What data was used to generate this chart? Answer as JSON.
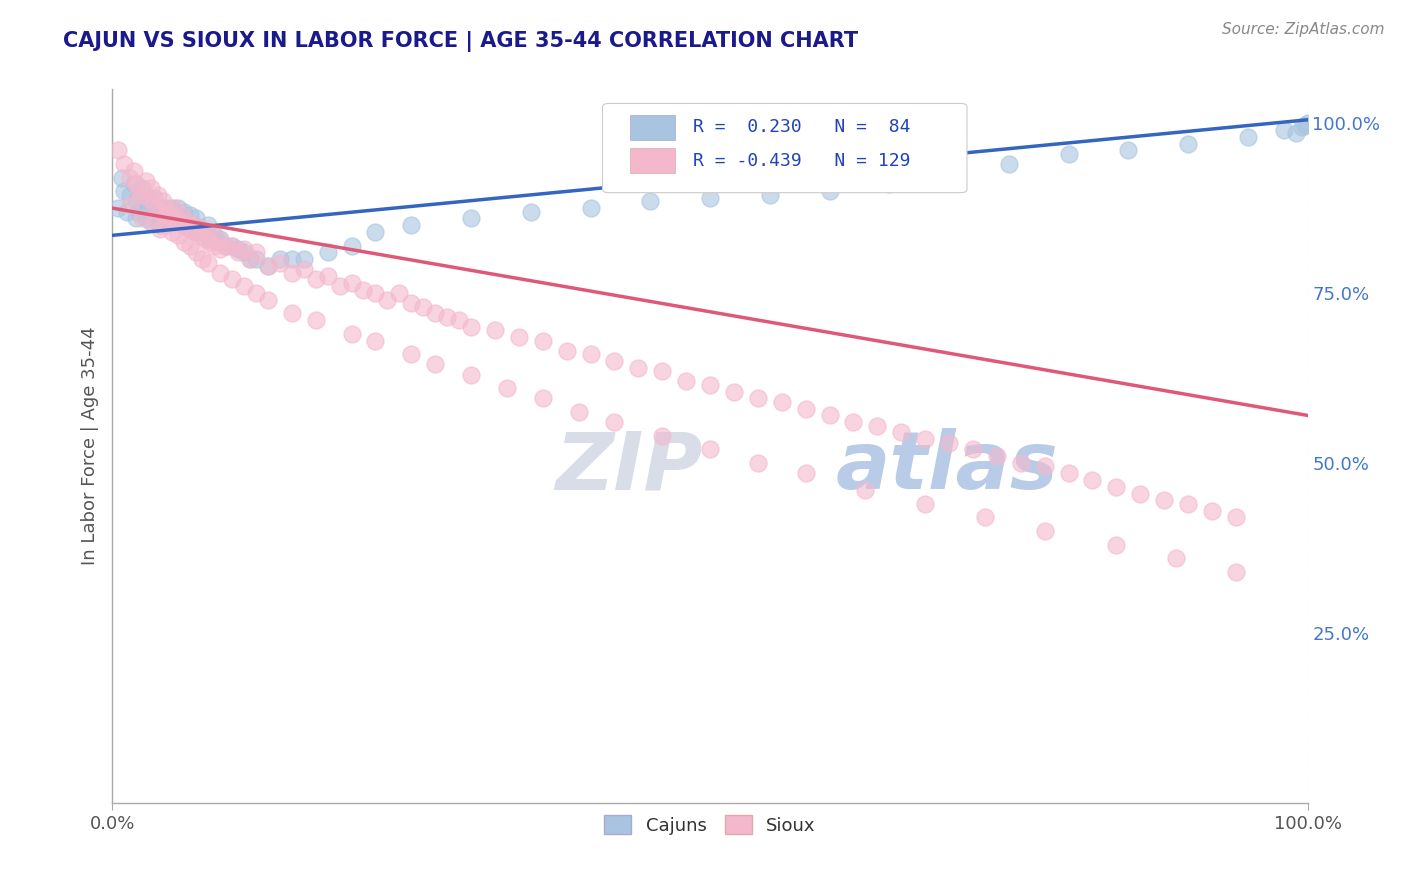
{
  "title": "CAJUN VS SIOUX IN LABOR FORCE | AGE 35-44 CORRELATION CHART",
  "source_text": "Source: ZipAtlas.com",
  "ylabel": "In Labor Force | Age 35-44",
  "legend_cajun": "Cajuns",
  "legend_sioux": "Sioux",
  "R_cajun": 0.23,
  "N_cajun": 84,
  "R_sioux": -0.439,
  "N_sioux": 129,
  "color_cajun": "#a8c4e0",
  "color_sioux": "#f4b8cc",
  "line_color_cajun": "#3465c0",
  "line_color_sioux": "#e05878",
  "background_color": "#ffffff",
  "grid_color": "#cccccc",
  "title_color": "#1a1a8c",
  "axis_label_color": "#555555",
  "cajun_x": [
    0.005,
    0.008,
    0.01,
    0.012,
    0.015,
    0.018,
    0.02,
    0.02,
    0.022,
    0.025,
    0.025,
    0.028,
    0.03,
    0.03,
    0.032,
    0.033,
    0.035,
    0.035,
    0.038,
    0.04,
    0.04,
    0.042,
    0.043,
    0.045,
    0.045,
    0.047,
    0.048,
    0.05,
    0.05,
    0.052,
    0.053,
    0.055,
    0.055,
    0.057,
    0.058,
    0.06,
    0.06,
    0.062,
    0.065,
    0.065,
    0.068,
    0.07,
    0.07,
    0.072,
    0.075,
    0.078,
    0.08,
    0.082,
    0.085,
    0.088,
    0.09,
    0.095,
    0.1,
    0.105,
    0.11,
    0.115,
    0.12,
    0.13,
    0.14,
    0.15,
    0.16,
    0.18,
    0.2,
    0.22,
    0.25,
    0.3,
    0.35,
    0.4,
    0.45,
    0.5,
    0.55,
    0.6,
    0.65,
    0.7,
    0.75,
    0.8,
    0.85,
    0.9,
    0.95,
    0.98,
    0.99,
    0.995,
    0.998,
    1.0
  ],
  "cajun_y": [
    0.875,
    0.92,
    0.9,
    0.87,
    0.895,
    0.91,
    0.86,
    0.885,
    0.87,
    0.905,
    0.875,
    0.86,
    0.89,
    0.875,
    0.855,
    0.87,
    0.865,
    0.89,
    0.875,
    0.85,
    0.87,
    0.865,
    0.875,
    0.86,
    0.855,
    0.875,
    0.865,
    0.86,
    0.875,
    0.855,
    0.865,
    0.86,
    0.875,
    0.855,
    0.865,
    0.85,
    0.87,
    0.85,
    0.845,
    0.865,
    0.85,
    0.84,
    0.86,
    0.845,
    0.84,
    0.835,
    0.85,
    0.83,
    0.835,
    0.825,
    0.83,
    0.82,
    0.82,
    0.815,
    0.81,
    0.8,
    0.8,
    0.79,
    0.8,
    0.8,
    0.8,
    0.81,
    0.82,
    0.84,
    0.85,
    0.86,
    0.87,
    0.875,
    0.885,
    0.89,
    0.895,
    0.9,
    0.91,
    0.92,
    0.94,
    0.955,
    0.96,
    0.97,
    0.98,
    0.99,
    0.985,
    0.995,
    0.998,
    1.0
  ],
  "sioux_x": [
    0.005,
    0.01,
    0.015,
    0.018,
    0.02,
    0.022,
    0.025,
    0.028,
    0.03,
    0.032,
    0.035,
    0.038,
    0.04,
    0.042,
    0.045,
    0.045,
    0.048,
    0.05,
    0.052,
    0.055,
    0.058,
    0.06,
    0.062,
    0.065,
    0.068,
    0.07,
    0.072,
    0.075,
    0.078,
    0.08,
    0.082,
    0.085,
    0.088,
    0.09,
    0.095,
    0.1,
    0.105,
    0.11,
    0.115,
    0.12,
    0.13,
    0.14,
    0.15,
    0.16,
    0.17,
    0.18,
    0.19,
    0.2,
    0.21,
    0.22,
    0.23,
    0.24,
    0.25,
    0.26,
    0.27,
    0.28,
    0.29,
    0.3,
    0.32,
    0.34,
    0.36,
    0.38,
    0.4,
    0.42,
    0.44,
    0.46,
    0.48,
    0.5,
    0.52,
    0.54,
    0.56,
    0.58,
    0.6,
    0.62,
    0.64,
    0.66,
    0.68,
    0.7,
    0.72,
    0.74,
    0.76,
    0.78,
    0.8,
    0.82,
    0.84,
    0.86,
    0.88,
    0.9,
    0.92,
    0.94,
    0.015,
    0.025,
    0.035,
    0.04,
    0.045,
    0.05,
    0.055,
    0.06,
    0.065,
    0.07,
    0.075,
    0.08,
    0.09,
    0.1,
    0.11,
    0.12,
    0.13,
    0.15,
    0.17,
    0.2,
    0.22,
    0.25,
    0.27,
    0.3,
    0.33,
    0.36,
    0.39,
    0.42,
    0.46,
    0.5,
    0.54,
    0.58,
    0.63,
    0.68,
    0.73,
    0.78,
    0.84,
    0.89,
    0.94
  ],
  "sioux_y": [
    0.96,
    0.94,
    0.92,
    0.93,
    0.91,
    0.9,
    0.895,
    0.915,
    0.89,
    0.905,
    0.88,
    0.895,
    0.87,
    0.885,
    0.875,
    0.865,
    0.87,
    0.86,
    0.875,
    0.855,
    0.865,
    0.85,
    0.855,
    0.845,
    0.85,
    0.84,
    0.835,
    0.845,
    0.83,
    0.84,
    0.825,
    0.82,
    0.83,
    0.815,
    0.82,
    0.82,
    0.81,
    0.815,
    0.8,
    0.81,
    0.79,
    0.795,
    0.78,
    0.785,
    0.77,
    0.775,
    0.76,
    0.765,
    0.755,
    0.75,
    0.74,
    0.75,
    0.735,
    0.73,
    0.72,
    0.715,
    0.71,
    0.7,
    0.695,
    0.685,
    0.68,
    0.665,
    0.66,
    0.65,
    0.64,
    0.635,
    0.62,
    0.615,
    0.605,
    0.595,
    0.59,
    0.58,
    0.57,
    0.56,
    0.555,
    0.545,
    0.535,
    0.53,
    0.52,
    0.51,
    0.5,
    0.495,
    0.485,
    0.475,
    0.465,
    0.455,
    0.445,
    0.44,
    0.43,
    0.42,
    0.88,
    0.86,
    0.855,
    0.845,
    0.85,
    0.84,
    0.835,
    0.825,
    0.82,
    0.81,
    0.8,
    0.795,
    0.78,
    0.77,
    0.76,
    0.75,
    0.74,
    0.72,
    0.71,
    0.69,
    0.68,
    0.66,
    0.645,
    0.63,
    0.61,
    0.595,
    0.575,
    0.56,
    0.54,
    0.52,
    0.5,
    0.485,
    0.46,
    0.44,
    0.42,
    0.4,
    0.38,
    0.36,
    0.34
  ],
  "xlim": [
    0.0,
    1.0
  ],
  "ylim": [
    0.0,
    1.05
  ],
  "trend_cajun_x0": 0.0,
  "trend_cajun_y0": 0.835,
  "trend_cajun_x1": 1.0,
  "trend_cajun_y1": 1.005,
  "trend_sioux_x0": 0.0,
  "trend_sioux_y0": 0.875,
  "trend_sioux_x1": 1.0,
  "trend_sioux_y1": 0.57,
  "right_yticks": [
    0.0,
    0.25,
    0.5,
    0.75,
    1.0
  ],
  "right_yticklabels": [
    "",
    "25.0%",
    "50.0%",
    "75.0%",
    "100.0%"
  ],
  "watermark_zip": "ZIP",
  "watermark_atlas": "atlas",
  "watermark_color_zip": "#d8dde8",
  "watermark_color_atlas": "#b8cce8"
}
